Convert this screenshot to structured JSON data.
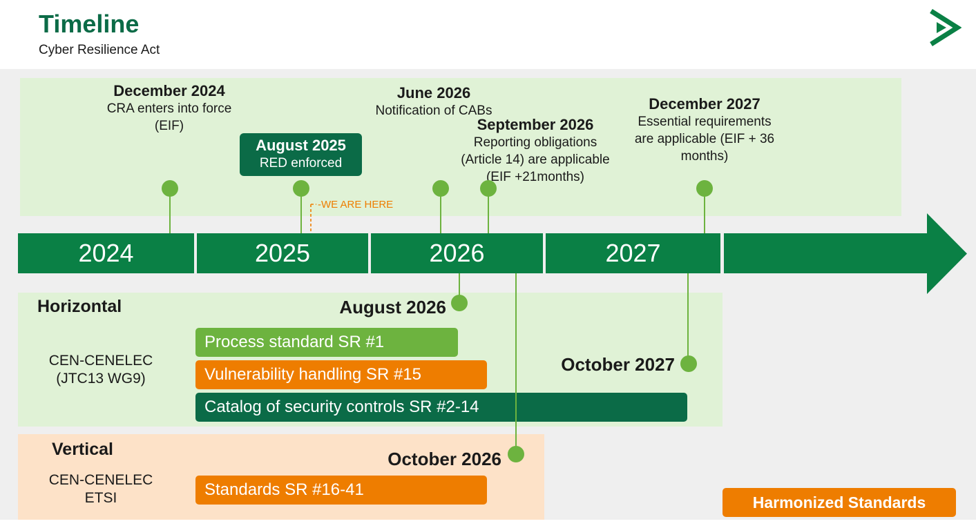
{
  "header": {
    "title": "Timeline",
    "subtitle": "Cyber Resilience Act"
  },
  "colors": {
    "dark_green": "#0b6b47",
    "timeline_green": "#0a8045",
    "light_green": "#6db33f",
    "orange": "#ee7d00",
    "pale_green": "#e0f2d6",
    "peach": "#fde2c8"
  },
  "milestones": [
    {
      "date": "December 2024",
      "line1": "CRA enters into force",
      "line2": "(EIF)"
    },
    {
      "date": "August 2025",
      "line1": "RED enforced"
    },
    {
      "date": "June 2026",
      "line1": "Notification of CABs"
    },
    {
      "date": "September 2026",
      "line1": "Reporting obligations",
      "line2": "(Article 14) are applicable",
      "line3": "(EIF +21months)"
    },
    {
      "date": "December 2027",
      "line1": "Essential requirements",
      "line2": "are applicable (EIF + 36",
      "line3": "months)"
    }
  ],
  "we_are_here": "-WE ARE HERE",
  "years": [
    "2024",
    "2025",
    "2026",
    "2027"
  ],
  "horizontal": {
    "heading": "Horizontal",
    "org_line1": "CEN-CENELEC",
    "org_line2": "(JTC13 WG9)",
    "date_aug": "August 2026",
    "date_oct": "October 2027",
    "bars": [
      "Process standard SR #1",
      "Vulnerability handling SR #15",
      "Catalog of security controls SR #2-14"
    ]
  },
  "vertical": {
    "heading": "Vertical",
    "org_line1": "CEN-CENELEC",
    "org_line2": "ETSI",
    "date_oct": "October 2026",
    "bar": "Standards SR #16-41"
  },
  "legend": {
    "harmonized": "Harmonized Standards"
  }
}
